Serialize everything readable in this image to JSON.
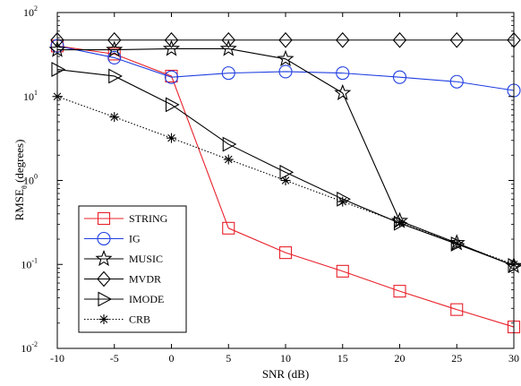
{
  "chart_data": {
    "type": "line",
    "xlabel": "SNR (dB)",
    "ylabel": {
      "base": "RMSE",
      "subscript": "θ",
      "suffix": " (degrees)"
    },
    "xlim": [
      -10,
      30
    ],
    "ylim": [
      0.01,
      100
    ],
    "yscale": "log",
    "grid": false,
    "legend_position": "lower-left",
    "x": [
      -10,
      -5,
      0,
      5,
      10,
      15,
      20,
      25,
      30
    ],
    "xticks": [
      "-10",
      "-5",
      "0",
      "5",
      "10",
      "15",
      "20",
      "25",
      "30"
    ],
    "yticks": [
      {
        "value": 0.01,
        "base": "10",
        "exp": "-2"
      },
      {
        "value": 0.1,
        "base": "10",
        "exp": "-1"
      },
      {
        "value": 1,
        "base": "10",
        "exp": "0"
      },
      {
        "value": 10,
        "base": "10",
        "exp": "1"
      },
      {
        "value": 100,
        "base": "10",
        "exp": "2"
      }
    ],
    "series": [
      {
        "name": "STRING",
        "color": "#e8212a",
        "marker": "square",
        "dash": "solid",
        "values": [
          40,
          32,
          17.5,
          0.27,
          0.138,
          0.083,
          0.048,
          0.029,
          0.018
        ]
      },
      {
        "name": "IG",
        "color": "#1f3ee0",
        "marker": "circle",
        "dash": "solid",
        "values": [
          40,
          29,
          17,
          19,
          19.8,
          19,
          17,
          15,
          11.8
        ]
      },
      {
        "name": "MUSIC",
        "color": "#000000",
        "marker": "star",
        "dash": "solid",
        "values": [
          36,
          36,
          37,
          37,
          28,
          11,
          0.33,
          0.18,
          0.096
        ]
      },
      {
        "name": "MVDR",
        "color": "#000000",
        "marker": "diamond",
        "dash": "solid",
        "values": [
          47,
          47,
          47,
          47,
          47,
          47,
          47,
          47,
          47
        ]
      },
      {
        "name": "IMODE",
        "color": "#000000",
        "marker": "triangle-right",
        "dash": "solid",
        "values": [
          21,
          17.5,
          8,
          2.7,
          1.25,
          0.6,
          0.31,
          0.175,
          0.097
        ]
      },
      {
        "name": "CRB",
        "color": "#000000",
        "marker": "asterisk",
        "dash": "dotted",
        "values": [
          10,
          5.7,
          3.2,
          1.78,
          1.0,
          0.56,
          0.315,
          0.177,
          0.1
        ]
      }
    ]
  }
}
